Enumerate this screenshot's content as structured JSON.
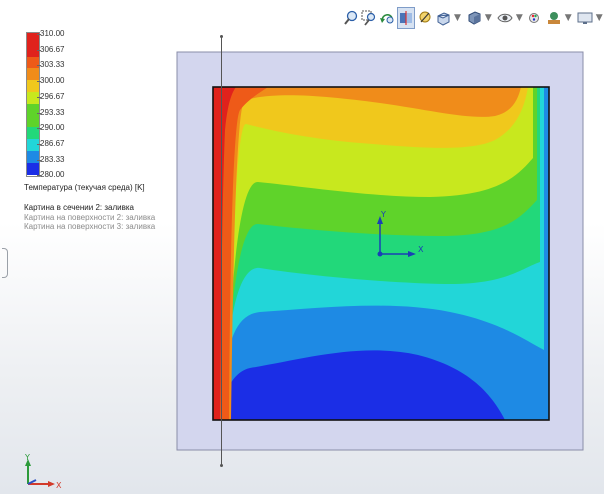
{
  "toolbar": {
    "icons": [
      "zoom-to-fit-icon",
      "zoom-to-area-icon",
      "previous-view-icon",
      "section-view-icon",
      "dynamic-annotation-icon",
      "view-orientation-icon",
      "display-style-icon",
      "hide-show-items-icon",
      "edit-appearance-icon",
      "apply-scene-icon",
      "view-settings-icon"
    ]
  },
  "legend": {
    "ticks": [
      "310.00",
      "306.67",
      "303.33",
      "300.00",
      "296.67",
      "293.33",
      "290.00",
      "286.67",
      "283.33",
      "280.00"
    ],
    "colors": [
      "#e0221c",
      "#ee5a18",
      "#f08c1a",
      "#f0c81c",
      "#c8e81e",
      "#5fd32a",
      "#22d87a",
      "#22d6d8",
      "#1e8ae4",
      "#1b2ee6"
    ],
    "title": "Температура (текучая среда) [K]",
    "plots": [
      {
        "label": "Картина в сечении 2: заливка",
        "active": true
      },
      {
        "label": "Картина на поверхности 2: заливка",
        "active": false
      },
      {
        "label": "Картина на поверхности 3: заливка",
        "active": false
      }
    ]
  },
  "triad": {
    "x": "X",
    "y": "Y"
  },
  "origin": {
    "x": "X",
    "y": "Y"
  }
}
